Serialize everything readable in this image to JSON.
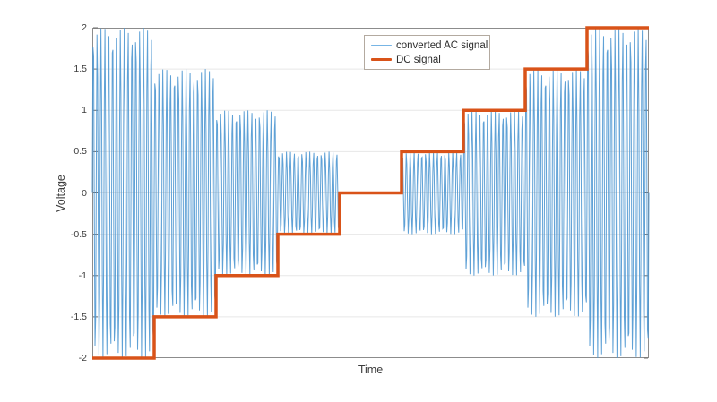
{
  "figure": {
    "background": "#ffffff"
  },
  "chart_data": {
    "type": "line",
    "title": "",
    "xlabel": "Time",
    "ylabel": "Voltage",
    "ylim": [
      -2,
      2
    ],
    "yticks": [
      -2,
      -1.5,
      -1,
      -0.5,
      0,
      0.5,
      1,
      1.5,
      2
    ],
    "ytick_labels": [
      "-2",
      "-1.5",
      "-1",
      "-0.5",
      "0",
      "0.5",
      "1",
      "1.5",
      "2"
    ],
    "x_tick_labels_shown": false,
    "grid": "horizontal-only",
    "grid_color": "#e7e7e7",
    "axis_color": "#8c8c8c",
    "tick_color": "#6e6e6e",
    "segments": {
      "count": 9,
      "equal_width": true
    },
    "series": [
      {
        "name": "converted AC signal",
        "kind": "amplitude-modulated-sine",
        "color": "#4e97d1",
        "line_width": 1,
        "opacity": 0.9,
        "cycles_per_segment": 16,
        "amplitudes_per_segment": [
          2,
          1.5,
          1,
          0.5,
          0,
          0.5,
          1,
          1.5,
          2
        ]
      },
      {
        "name": "DC signal",
        "kind": "staircase",
        "color": "#d95319",
        "line_width": 3.5,
        "levels": [
          -2,
          -1.5,
          -1,
          -0.5,
          0,
          0.5,
          1,
          1.5,
          2
        ]
      }
    ],
    "legend": {
      "position": "top-center-inside",
      "border_color": "#b3aaa0",
      "background": "#ffffff",
      "entries": [
        {
          "label": "converted AC signal",
          "color": "#77b5e5",
          "line_width": 1.5
        },
        {
          "label": "DC signal",
          "color": "#d95319",
          "line_width": 3.5
        }
      ]
    }
  }
}
